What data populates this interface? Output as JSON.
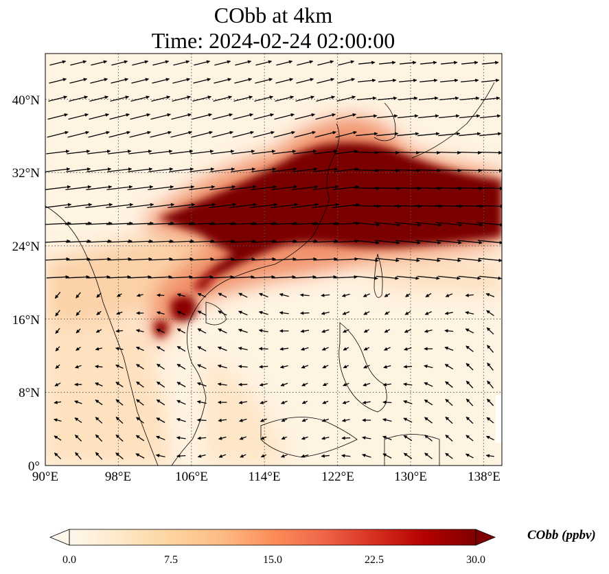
{
  "title": {
    "line1": "CObb at 4km",
    "line2": "Time: 2024-02-24 02:00:00"
  },
  "map": {
    "projection": "PlateCarree",
    "lon_range": [
      90,
      140
    ],
    "lat_range": [
      0,
      45
    ],
    "gridlines": "dotted",
    "lon_ticks": [
      "90°E",
      "98°E",
      "106°E",
      "114°E",
      "122°E",
      "130°E",
      "138°E"
    ],
    "lon_tick_values": [
      90,
      98,
      106,
      114,
      122,
      130,
      138
    ],
    "lat_ticks": [
      "0°",
      "8°N",
      "16°N",
      "24°N",
      "32°N",
      "40°N"
    ],
    "lat_tick_values": [
      0,
      8,
      16,
      24,
      32,
      40
    ],
    "field": "CObb concentration (filled contours)",
    "vectors": "wind arrows"
  },
  "colorbar": {
    "label": "CObb (ppbv)",
    "ticks": [
      "0.0",
      "7.5",
      "15.0",
      "22.5",
      "30.0"
    ],
    "tick_values": [
      0,
      7.5,
      15,
      22.5,
      30
    ],
    "range": [
      0,
      30
    ],
    "extend": "both",
    "colormap": "OrRd",
    "colors": [
      "#fff7ec",
      "#fee8c8",
      "#fdd49e",
      "#fdbb84",
      "#fc8d59",
      "#ef6548",
      "#d7301f",
      "#b30000",
      "#7f0000"
    ]
  }
}
